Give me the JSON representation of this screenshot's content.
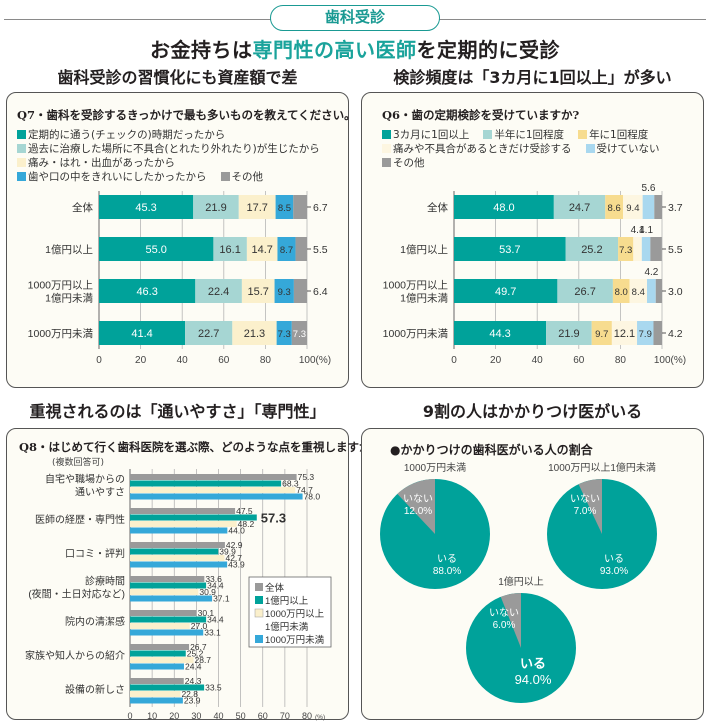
{
  "header": {
    "badge": "歯科受診",
    "title_pre": "お金持ちは",
    "title_highlight": "専門性の高い医師",
    "title_post": "を定期的に受診"
  },
  "colors": {
    "teal": "#00a29a",
    "light_teal": "#a6d6d3",
    "yellow": "#f7dc8f",
    "cream": "#fbf0cc",
    "light_cream": "#fdf6e1",
    "sky": "#35a8d9",
    "light_sky": "#a9d8ef",
    "gray": "#9a9a9a"
  },
  "sections": {
    "q7_title": "歯科受診の習慣化にも資産額で差",
    "q6_title": "検診頻度は「3カ月に1回以上」が多い",
    "q8_title": "重視されるのは「通いやすさ」「専門性」",
    "pie_title": "9割の人はかかりつけ医がいる"
  },
  "chart_data": [
    {
      "id": "q7",
      "type": "bar",
      "orientation": "horizontal-stacked",
      "title": "Q7・歯科を受診するきっかけで最も多いものを教えてください。",
      "legend": [
        "定期的に通う(チェックの)時期だったから",
        "過去に治療した場所に不具合(とれたり外れたり)が生じたから",
        "痛み・はれ・出血があったから",
        "歯や口の中をきれいにしたかったから",
        "その他"
      ],
      "categories": [
        "全体",
        "1億円以上",
        "1000万円以上\n1億円未満",
        "1000万円未満"
      ],
      "series": [
        {
          "name": "定期的に通う(チェックの)時期だったから",
          "color_key": "teal",
          "values": [
            45.3,
            55.0,
            46.3,
            41.4
          ]
        },
        {
          "name": "過去に治療した場所に不具合(とれたり外れたり)が生じたから",
          "color_key": "light_teal",
          "values": [
            21.9,
            16.1,
            22.4,
            22.7
          ]
        },
        {
          "name": "痛み・はれ・出血があったから",
          "color_key": "cream",
          "values": [
            17.7,
            14.7,
            15.7,
            21.3
          ]
        },
        {
          "name": "歯や口の中をきれいにしたかったから",
          "color_key": "sky",
          "values": [
            8.5,
            8.7,
            9.3,
            7.3
          ]
        },
        {
          "name": "その他",
          "color_key": "gray",
          "values": [
            6.7,
            5.5,
            6.4,
            7.3
          ]
        }
      ],
      "x_ticks": [
        "0",
        "20",
        "40",
        "60",
        "80",
        "100(%)"
      ],
      "xlim": [
        0,
        100
      ]
    },
    {
      "id": "q6",
      "type": "bar",
      "orientation": "horizontal-stacked",
      "title": "Q6・歯の定期検診を受けていますか?",
      "legend": [
        "3カ月に1回以上",
        "半年に1回程度",
        "年に1回程度",
        "痛みや不具合があるときだけ受診する",
        "受けていない",
        "その他"
      ],
      "categories": [
        "全体",
        "1億円以上",
        "1000万円以上\n1億円未満",
        "1000万円未満"
      ],
      "series": [
        {
          "name": "3カ月に1回以上",
          "color_key": "teal",
          "values": [
            48.0,
            53.7,
            49.7,
            44.3
          ]
        },
        {
          "name": "半年に1回程度",
          "color_key": "light_teal",
          "values": [
            24.7,
            25.2,
            26.7,
            21.9
          ]
        },
        {
          "name": "年に1回程度",
          "color_key": "yellow",
          "values": [
            8.6,
            7.3,
            8.0,
            9.7
          ]
        },
        {
          "name": "痛みや不具合があるときだけ受診する",
          "color_key": "light_cream",
          "values": [
            9.4,
            4.1,
            8.4,
            12.1
          ]
        },
        {
          "name": "受けていない",
          "color_key": "light_sky",
          "values": [
            5.6,
            4.1,
            4.2,
            7.9
          ]
        },
        {
          "name": "その他",
          "color_key": "gray",
          "values": [
            3.7,
            5.5,
            3.0,
            4.2
          ]
        }
      ],
      "x_ticks": [
        "0",
        "20",
        "40",
        "60",
        "80",
        "100(%)"
      ],
      "xlim": [
        0,
        100
      ]
    },
    {
      "id": "q8",
      "type": "bar",
      "orientation": "horizontal-grouped",
      "title": "Q8・はじめて行く歯科医院を選ぶ際、どのような点を重視しますか?",
      "subtitle": "(複数回答可)",
      "categories": [
        "自宅や職場からの\n通いやすさ",
        "医師の経歴・専門性",
        "口コミ・評判",
        "診療時間\n(夜間・土日対応など)",
        "院内の清潔感",
        "家族や知人からの紹介",
        "設備の新しさ"
      ],
      "series": [
        {
          "name": "全体",
          "color_key": "gray",
          "values": [
            75.3,
            47.5,
            42.9,
            33.6,
            30.1,
            26.7,
            24.3
          ]
        },
        {
          "name": "1億円以上",
          "color_key": "teal",
          "values": [
            68.3,
            57.3,
            39.9,
            34.4,
            34.4,
            25.2,
            33.5
          ]
        },
        {
          "name": "1000万円以上\n1億円未満",
          "color_key": "cream",
          "values": [
            74.7,
            48.2,
            42.7,
            30.9,
            27.0,
            28.7,
            22.8
          ]
        },
        {
          "name": "1000万円未満",
          "color_key": "sky",
          "values": [
            78.0,
            44.0,
            43.9,
            37.1,
            33.1,
            24.4,
            23.9
          ]
        }
      ],
      "highlight": {
        "series": 1,
        "category": 1,
        "value": 57.3
      },
      "legend": [
        "全体",
        "1億円以上",
        "1000万円以上",
        "1億円未満",
        "1000万円未満"
      ],
      "x_ticks": [
        "0",
        "10",
        "20",
        "30",
        "40",
        "50",
        "60",
        "70",
        "80"
      ],
      "x_unit": "(%)",
      "xlim": [
        0,
        80
      ]
    },
    {
      "id": "pies",
      "type": "pie",
      "title": "●かかりつけの歯科医がいる人の割合",
      "pies": [
        {
          "label": "1000万円未満",
          "slices": [
            {
              "name": "いる",
              "value": 88.0,
              "text": "88.0%",
              "color_key": "teal"
            },
            {
              "name": "いない",
              "value": 12.0,
              "text": "12.0%",
              "color_key": "gray"
            }
          ]
        },
        {
          "label": "1000万円以上1億円未満",
          "slices": [
            {
              "name": "いる",
              "value": 93.0,
              "text": "93.0%",
              "color_key": "teal"
            },
            {
              "name": "いない",
              "value": 7.0,
              "text": "7.0%",
              "color_key": "gray"
            }
          ]
        },
        {
          "label": "1億円以上",
          "slices": [
            {
              "name": "いる",
              "value": 94.0,
              "text": "94.0%",
              "color_key": "teal"
            },
            {
              "name": "いない",
              "value": 6.0,
              "text": "6.0%",
              "color_key": "gray"
            }
          ]
        }
      ]
    }
  ]
}
